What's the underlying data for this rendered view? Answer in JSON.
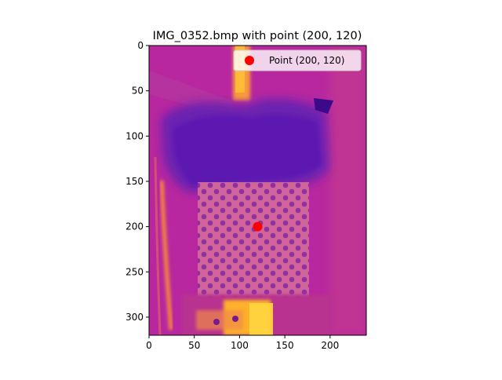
{
  "chart_data": {
    "type": "scatter",
    "title": "IMG_0352.bmp with point (200, 120)",
    "xlabel": "",
    "ylabel": "",
    "xlim": [
      0,
      240
    ],
    "ylim": [
      320,
      0
    ],
    "y_inverted": true,
    "x_ticks": [
      0,
      50,
      100,
      150,
      200
    ],
    "y_ticks": [
      0,
      50,
      100,
      150,
      200,
      250,
      300
    ],
    "grid": false,
    "legend_position": "top-right",
    "background_image": "thermal-image-plasma-colormap",
    "series": [
      {
        "name": "Point (200, 120)",
        "color": "#ff0000",
        "points": [
          {
            "x": 120,
            "y": 200
          }
        ]
      }
    ]
  }
}
